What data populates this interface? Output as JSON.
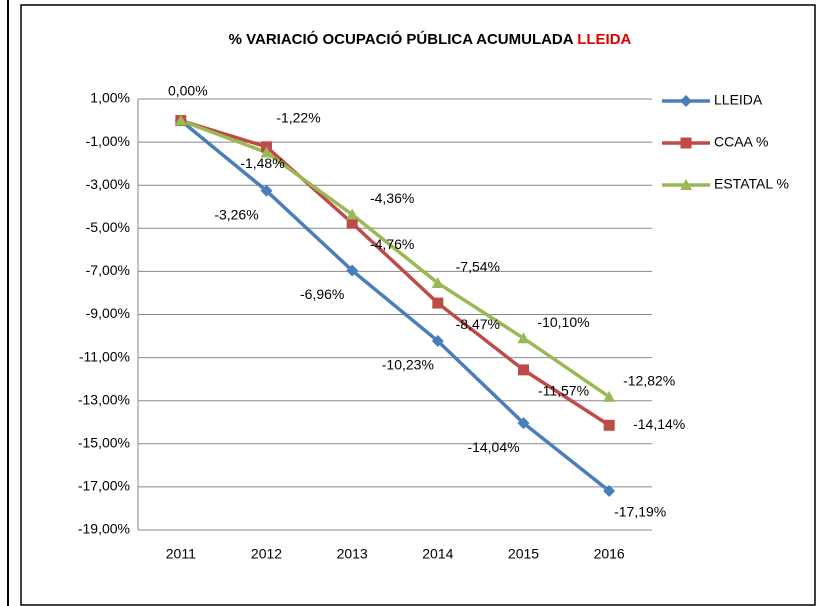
{
  "chart_data": {
    "type": "line",
    "title": "% VARIACIÓ OCUPACIÓ PÚBLICA ACUMULADA",
    "title_highlight": "LLEIDA",
    "categories": [
      "2011",
      "2012",
      "2013",
      "2014",
      "2015",
      "2016"
    ],
    "series": [
      {
        "name": "LLEIDA",
        "color": "#4a7ebb",
        "marker": "diamond",
        "values": [
          0.0,
          -3.26,
          -6.96,
          -10.23,
          -14.04,
          -17.19
        ],
        "value_labels": [
          "0,00%",
          "-3,26%",
          "-6,96%",
          "-10,23%",
          "-14,04%",
          "-17,19%"
        ]
      },
      {
        "name": "CCAA %",
        "color": "#be4b48",
        "marker": "square",
        "values": [
          0.0,
          -1.22,
          -4.76,
          -8.47,
          -11.57,
          -14.14
        ],
        "value_labels": [
          null,
          "-1,22%",
          "-4,76%",
          "-8,47%",
          "-11,57%",
          "-14,14%"
        ]
      },
      {
        "name": "ESTATAL %",
        "color": "#98b954",
        "marker": "triangle",
        "values": [
          0.0,
          -1.48,
          -4.36,
          -7.54,
          -10.1,
          -12.82
        ],
        "value_labels": [
          null,
          "-1,48%",
          "-4,36%",
          "-7,54%",
          "-10,10%",
          "-12,82%"
        ]
      }
    ],
    "ylim": [
      -19,
      1
    ],
    "yticks": [
      {
        "value": 1,
        "label": "1,00%"
      },
      {
        "value": -1,
        "label": "-1,00%"
      },
      {
        "value": -3,
        "label": "-3,00%"
      },
      {
        "value": -5,
        "label": "-5,00%"
      },
      {
        "value": -7,
        "label": "-7,00%"
      },
      {
        "value": -9,
        "label": "-9,00%"
      },
      {
        "value": -11,
        "label": "-11,00%"
      },
      {
        "value": -13,
        "label": "-13,00%"
      },
      {
        "value": -15,
        "label": "-15,00%"
      },
      {
        "value": -17,
        "label": "-17,00%"
      },
      {
        "value": -19,
        "label": "-19,00%"
      }
    ],
    "grid": true,
    "legend": "right"
  }
}
